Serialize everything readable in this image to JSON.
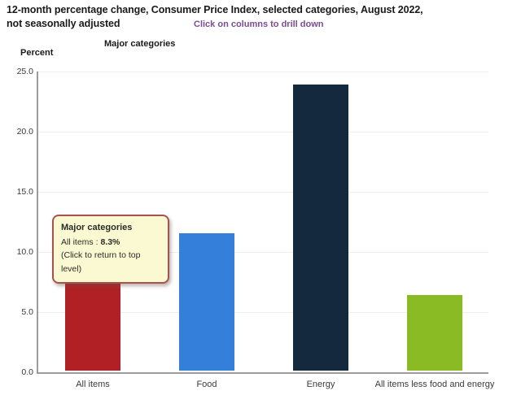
{
  "header": {
    "title_line1": "12-month percentage change, Consumer Price Index, selected categories, August 2022,",
    "title_line2": "not seasonally adjusted",
    "subtitle_hint": "Click on columns to drill down"
  },
  "chart_data": {
    "type": "bar",
    "title": "12-month percentage change, Consumer Price Index, selected categories, August 2022, not seasonally adjusted",
    "subtitle": "Click on columns to drill down",
    "group_label": "Major categories",
    "ylabel": "Percent",
    "categories": [
      "All items",
      "Food",
      "Energy",
      "All items less food and energy"
    ],
    "values": [
      8.3,
      11.4,
      23.8,
      6.3
    ],
    "bar_colors": [
      "#b02024",
      "#337fd9",
      "#14283e",
      "#8abb24"
    ],
    "ylim": [
      0,
      25
    ],
    "ytick_interval": 5,
    "ytick_labels": [
      "0.0",
      "5.0",
      "10.0",
      "15.0",
      "20.0",
      "25.0"
    ],
    "grid": true,
    "legend": "none",
    "tooltip": {
      "heading": "Major categories",
      "item": "All items : ",
      "value": "8.3%",
      "note": "(Click to return to top level)"
    }
  }
}
